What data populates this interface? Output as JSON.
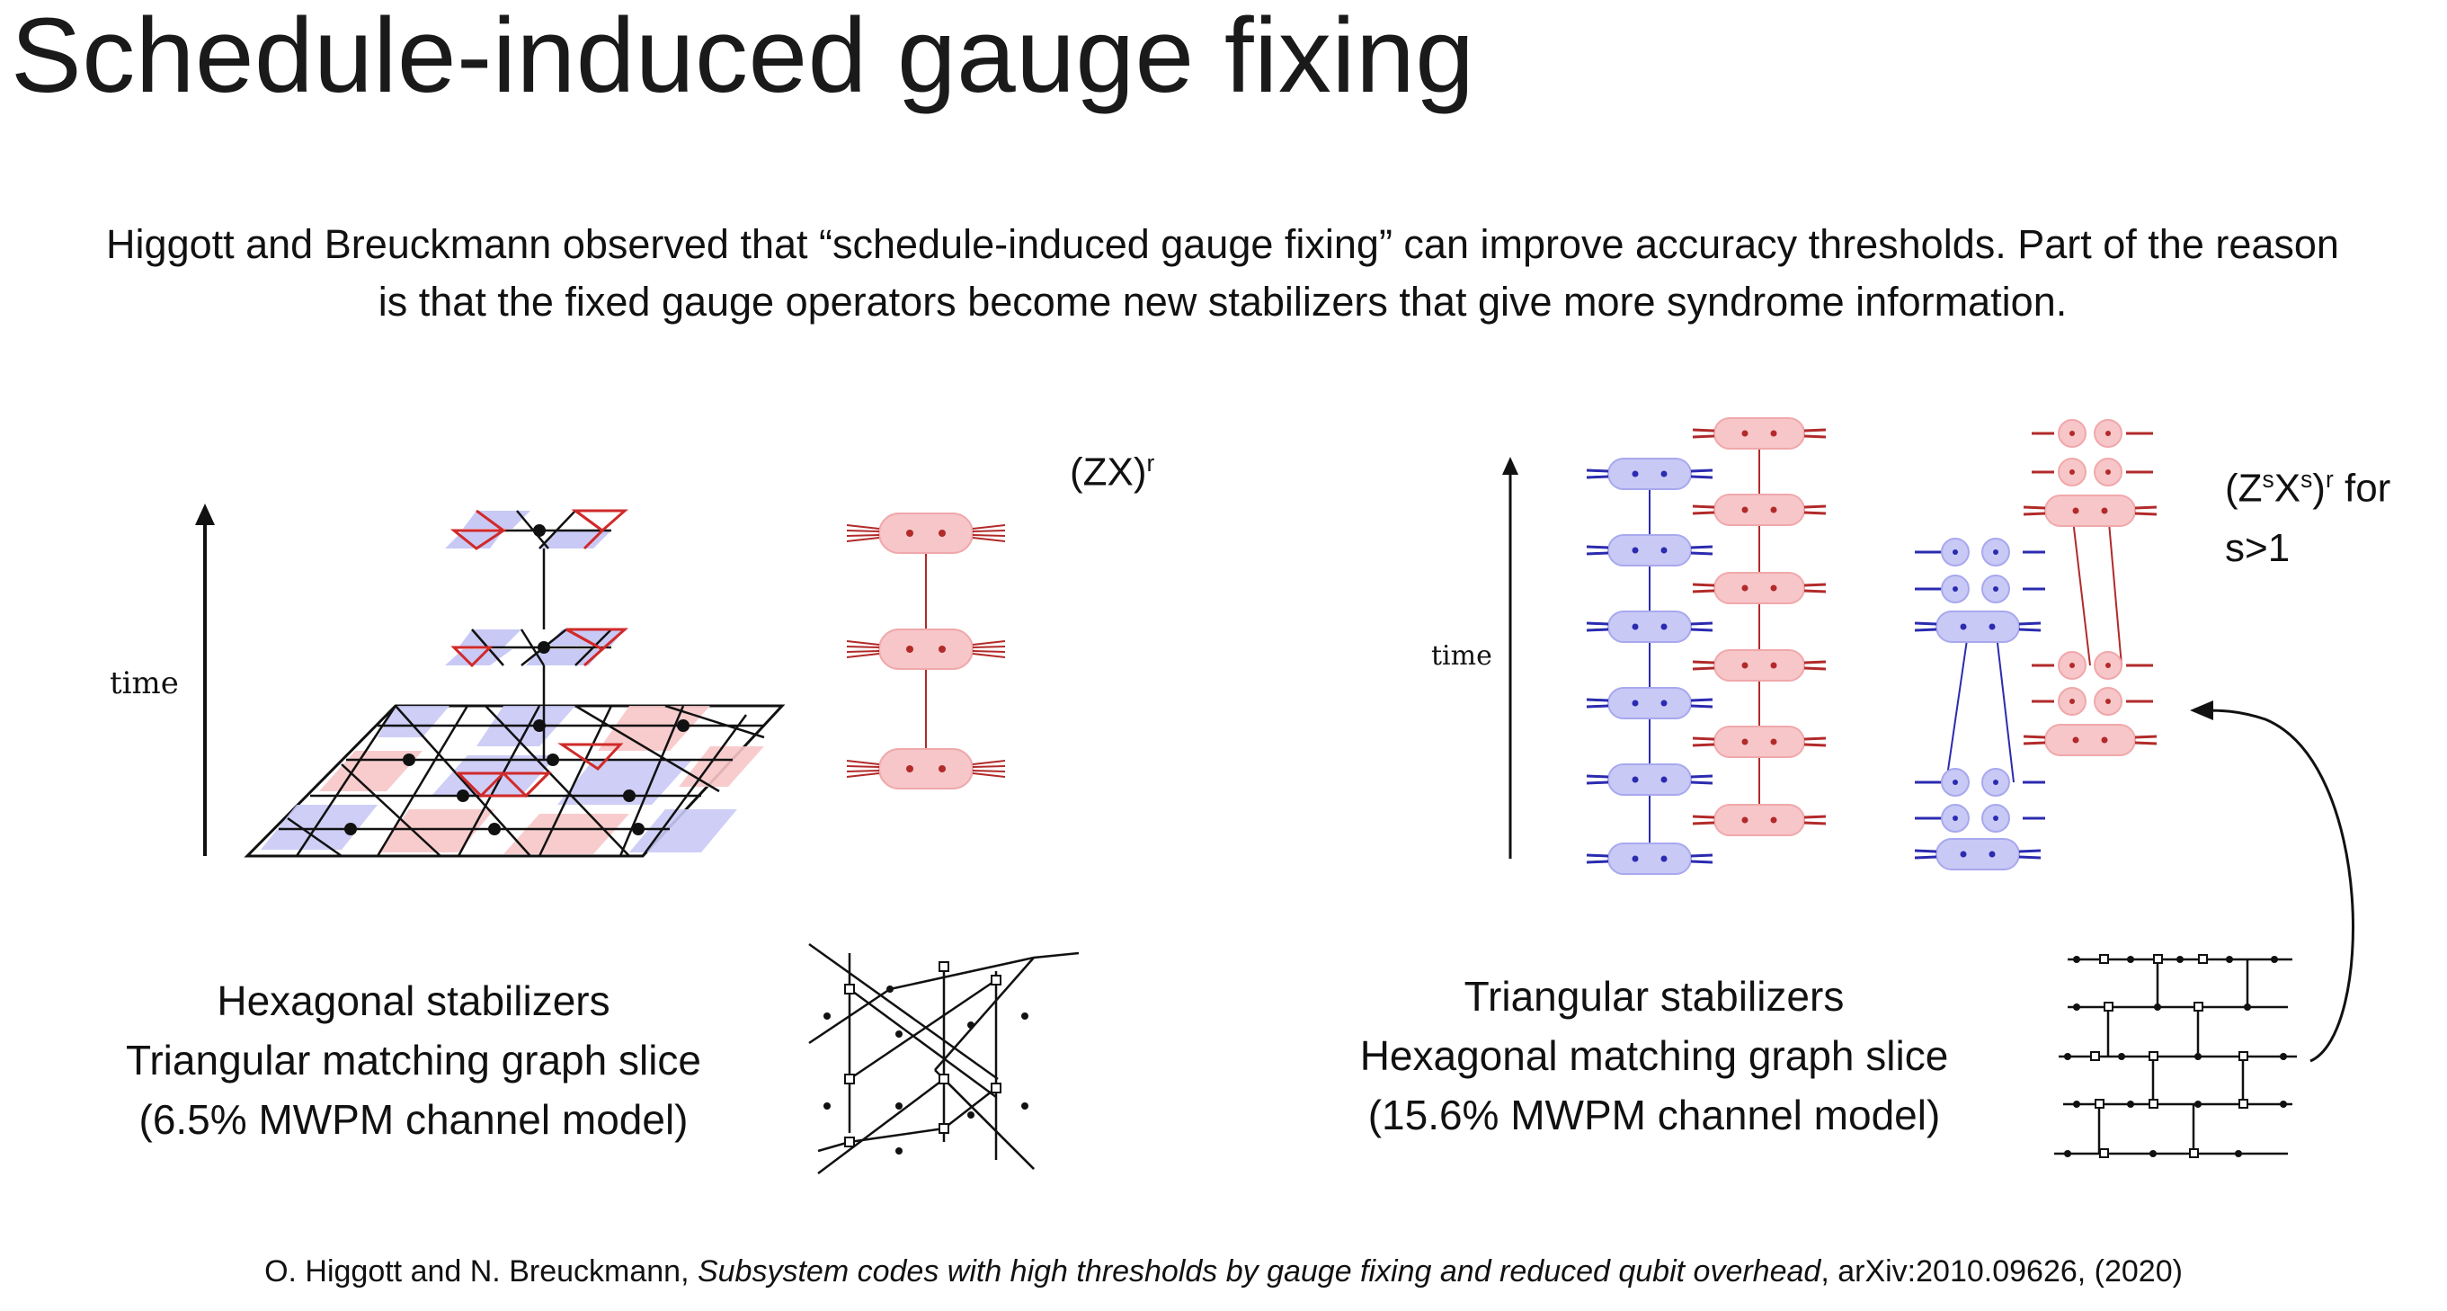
{
  "title": "Schedule-induced gauge fixing",
  "intro": "Higgott and Breuckmann observed that “schedule-induced gauge fixing” can improve accuracy thresholds. Part of the reason is that the fixed gauge operators become new stabilizers that give more syndrome information.",
  "left": {
    "time_label": "time",
    "schedule_label": "(ZX)",
    "schedule_sup": "r",
    "caption_line1": "Hexagonal stabilizers",
    "caption_line2": "Triangular matching graph slice",
    "caption_line3": "(6.5% MWPM channel model)"
  },
  "right": {
    "time_label": "time",
    "schedule_label_a": "(Z",
    "schedule_sup_s1": "s",
    "schedule_label_b": "X",
    "schedule_sup_s2": "s",
    "schedule_label_c": ")",
    "schedule_sup_r": "r",
    "schedule_label_d": " for",
    "schedule_label_line2": "s>1",
    "caption_line1": "Triangular stabilizers",
    "caption_line2": "Hexagonal matching graph slice",
    "caption_line3": "(15.6% MWPM channel model)"
  },
  "citation": {
    "authors": "O. Higgott and N. Breuckmann, ",
    "paper_title": "Subsystem codes with high thresholds by gauge fixing and reduced qubit overhead",
    "ref": ", arXiv:2010.09626, (2020)"
  },
  "colors": {
    "red_fill": "#f7c6c8",
    "red_stroke": "#b22a2a",
    "blue_fill": "#c9c9f6",
    "blue_stroke": "#2b2bb0",
    "text": "#111111"
  }
}
